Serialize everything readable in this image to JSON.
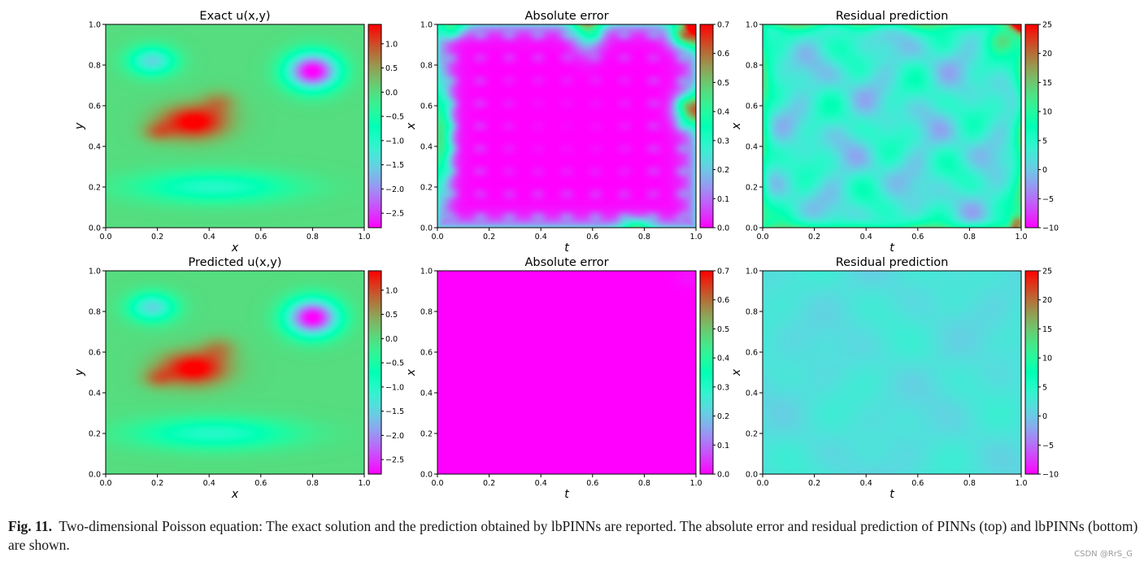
{
  "caption": {
    "label": "Fig. 11.",
    "text": "Two-dimensional Poisson equation: The exact solution and the prediction obtained by lbPINNs are reported. The absolute error and residual prediction of PINNs (top) and lbPINNs (bottom) are shown."
  },
  "watermark": "CSDN @RrS_G",
  "colormap": "rainbow",
  "chart_data": [
    {
      "type": "heatmap",
      "id": "exact",
      "title": "Exact u(x,y)",
      "xlabel": "x",
      "ylabel": "y",
      "xlim": [
        0,
        1
      ],
      "ylim": [
        0,
        1
      ],
      "xticks": [
        "0.0",
        "0.2",
        "0.4",
        "0.6",
        "0.8",
        "1.0"
      ],
      "yticks": [
        "0.0",
        "0.2",
        "0.4",
        "0.6",
        "0.8",
        "1.0"
      ],
      "colorbar": {
        "range": [
          -2.8,
          1.4
        ],
        "ticks": [
          1.0,
          0.5,
          0.0,
          -0.5,
          -1.0,
          -1.5,
          -2.0,
          -2.5
        ],
        "tick_labels": [
          "1.0",
          "0.5",
          "0.0",
          "−0.5",
          "−1.0",
          "−1.5",
          "−2.0",
          "−2.5"
        ]
      },
      "features": [
        {
          "kind": "max",
          "location": [
            0.35,
            0.52
          ],
          "value": 1.4
        },
        {
          "kind": "min",
          "location": [
            0.8,
            0.77
          ],
          "value": -2.8
        },
        {
          "kind": "low",
          "location": [
            0.18,
            0.82
          ],
          "value": -1.4
        },
        {
          "kind": "low_band",
          "location": [
            0.42,
            0.2
          ],
          "value": -1.0
        }
      ]
    },
    {
      "type": "heatmap",
      "id": "abs_error_pinn",
      "title": "Absolute error",
      "xlabel": "t",
      "ylabel": "x",
      "xlim": [
        0,
        1
      ],
      "ylim": [
        0,
        1
      ],
      "xticks": [
        "0.0",
        "0.2",
        "0.4",
        "0.6",
        "0.8",
        "1.0"
      ],
      "yticks": [
        "0.0",
        "0.2",
        "0.4",
        "0.6",
        "0.8",
        "1.0"
      ],
      "colorbar": {
        "range": [
          0,
          0.7
        ],
        "ticks": [
          0.7,
          0.6,
          0.5,
          0.4,
          0.3,
          0.2,
          0.1,
          0.0
        ],
        "tick_labels": [
          "0.7",
          "0.6",
          "0.5",
          "0.4",
          "0.3",
          "0.2",
          "0.1",
          "0.0"
        ]
      },
      "max_value": 0.7,
      "max_location": [
        1.0,
        1.0
      ]
    },
    {
      "type": "heatmap",
      "id": "residual_pinn",
      "title": "Residual prediction",
      "xlabel": "t",
      "ylabel": "x",
      "xlim": [
        0,
        1
      ],
      "ylim": [
        0,
        1
      ],
      "xticks": [
        "0.0",
        "0.2",
        "0.4",
        "0.6",
        "0.8",
        "1.0"
      ],
      "yticks": [
        "0.0",
        "0.2",
        "0.4",
        "0.6",
        "0.8",
        "1.0"
      ],
      "colorbar": {
        "range": [
          -10,
          25
        ],
        "ticks": [
          25,
          20,
          15,
          10,
          5,
          0,
          -5,
          -10
        ],
        "tick_labels": [
          "25",
          "20",
          "15",
          "10",
          "5",
          "0",
          "−5",
          "−10"
        ]
      },
      "max_value": 25,
      "max_location": [
        1.0,
        1.0
      ]
    },
    {
      "type": "heatmap",
      "id": "predicted",
      "title": "Predicted u(x,y)",
      "xlabel": "x",
      "ylabel": "y",
      "xlim": [
        0,
        1
      ],
      "ylim": [
        0,
        1
      ],
      "xticks": [
        "0.0",
        "0.2",
        "0.4",
        "0.6",
        "0.8",
        "1.0"
      ],
      "yticks": [
        "0.0",
        "0.2",
        "0.4",
        "0.6",
        "0.8",
        "1.0"
      ],
      "colorbar": {
        "range": [
          -2.8,
          1.4
        ],
        "ticks": [
          1.0,
          0.5,
          0.0,
          -0.5,
          -1.0,
          -1.5,
          -2.0,
          -2.5
        ],
        "tick_labels": [
          "1.0",
          "0.5",
          "0.0",
          "−0.5",
          "−1.0",
          "−1.5",
          "−2.0",
          "−2.5"
        ]
      },
      "features": [
        {
          "kind": "max",
          "location": [
            0.35,
            0.52
          ],
          "value": 1.4
        },
        {
          "kind": "min",
          "location": [
            0.8,
            0.77
          ],
          "value": -2.8
        },
        {
          "kind": "low",
          "location": [
            0.18,
            0.82
          ],
          "value": -1.4
        },
        {
          "kind": "low_band",
          "location": [
            0.42,
            0.2
          ],
          "value": -1.0
        }
      ]
    },
    {
      "type": "heatmap",
      "id": "abs_error_lbpinn",
      "title": "Absolute error",
      "xlabel": "t",
      "ylabel": "x",
      "xlim": [
        0,
        1
      ],
      "ylim": [
        0,
        1
      ],
      "xticks": [
        "0.0",
        "0.2",
        "0.4",
        "0.6",
        "0.8",
        "1.0"
      ],
      "yticks": [
        "0.0",
        "0.2",
        "0.4",
        "0.6",
        "0.8",
        "1.0"
      ],
      "colorbar": {
        "range": [
          0,
          0.7
        ],
        "ticks": [
          0.7,
          0.6,
          0.5,
          0.4,
          0.3,
          0.2,
          0.1,
          0.0
        ],
        "tick_labels": [
          "0.7",
          "0.6",
          "0.5",
          "0.4",
          "0.3",
          "0.2",
          "0.1",
          "0.0"
        ]
      },
      "max_value": 0.02
    },
    {
      "type": "heatmap",
      "id": "residual_lbpinn",
      "title": "Residual prediction",
      "xlabel": "t",
      "ylabel": "x",
      "xlim": [
        0,
        1
      ],
      "ylim": [
        0,
        1
      ],
      "xticks": [
        "0.0",
        "0.2",
        "0.4",
        "0.6",
        "0.8",
        "1.0"
      ],
      "yticks": [
        "0.0",
        "0.2",
        "0.4",
        "0.6",
        "0.8",
        "1.0"
      ],
      "colorbar": {
        "range": [
          -10,
          25
        ],
        "ticks": [
          25,
          20,
          15,
          10,
          5,
          0,
          -5,
          -10
        ],
        "tick_labels": [
          "25",
          "20",
          "15",
          "10",
          "5",
          "0",
          "−5",
          "−10"
        ]
      },
      "typical_value": 2
    }
  ]
}
